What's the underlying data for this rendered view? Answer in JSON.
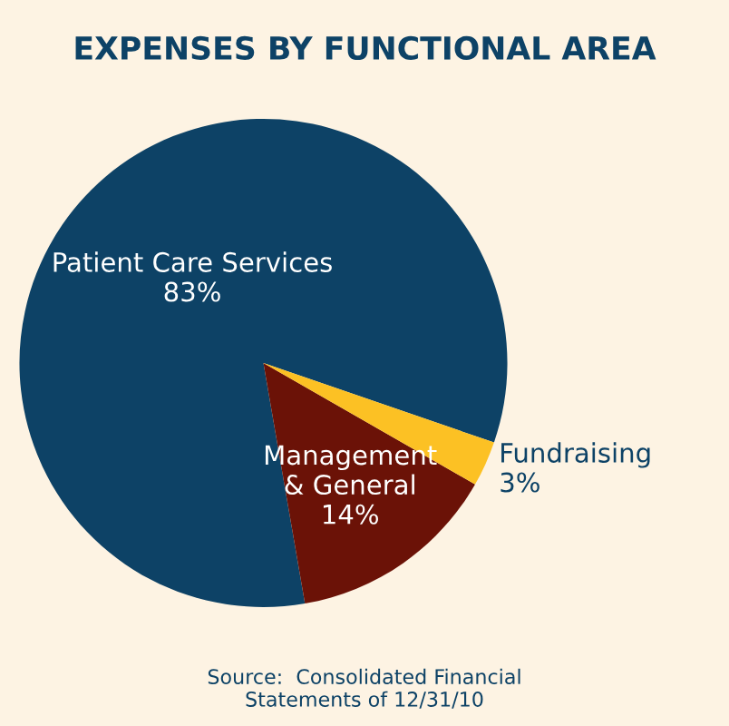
{
  "chart_data": {
    "type": "pie",
    "title": "EXPENSES BY FUNCTIONAL AREA",
    "categories": [
      "Patient Care Services",
      "Management\n& General",
      "Fundraising"
    ],
    "values": [
      83,
      14,
      3
    ],
    "colors": [
      "#0d4266",
      "#6b1207",
      "#fcc124"
    ],
    "value_labels": [
      "83%",
      "14%",
      "3%"
    ],
    "annotations": [
      "Source:  Consolidated Financial\nStatements of 12/31/10"
    ]
  }
}
